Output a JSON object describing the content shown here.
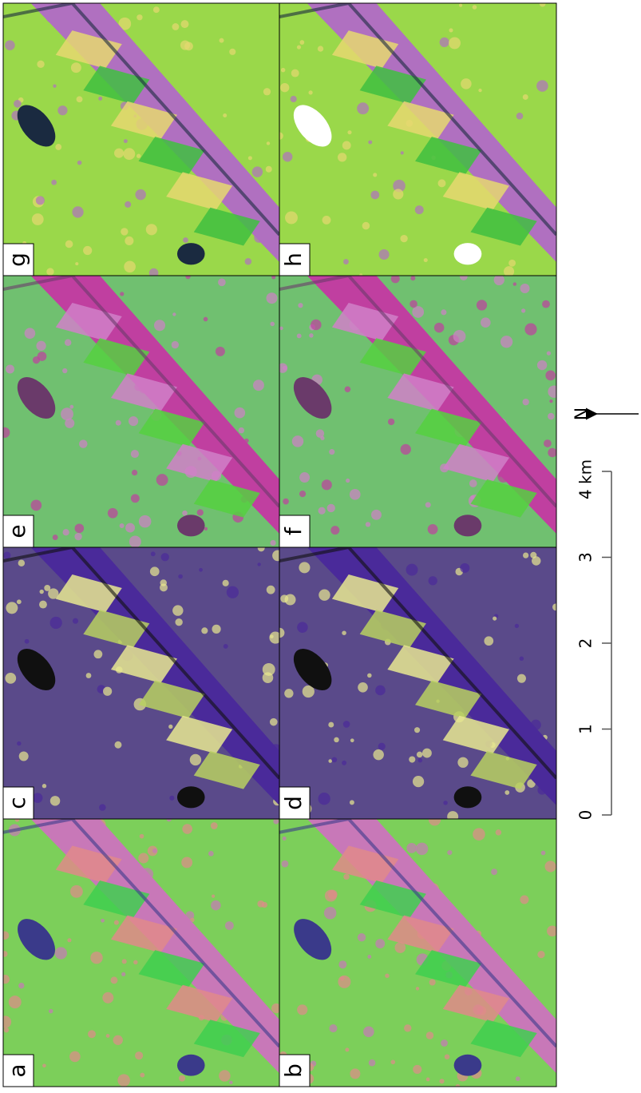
{
  "panels": [
    {
      "label": "g"
    },
    {
      "label": "h"
    },
    {
      "label": "e"
    },
    {
      "label": "f"
    },
    {
      "label": "c"
    },
    {
      "label": "d"
    },
    {
      "label": "a"
    },
    {
      "label": "b"
    }
  ],
  "scale_bar": {
    "labels": [
      "0",
      "1",
      "2",
      "3",
      "4 km"
    ]
  },
  "north_arrow": {
    "label": "N"
  }
}
